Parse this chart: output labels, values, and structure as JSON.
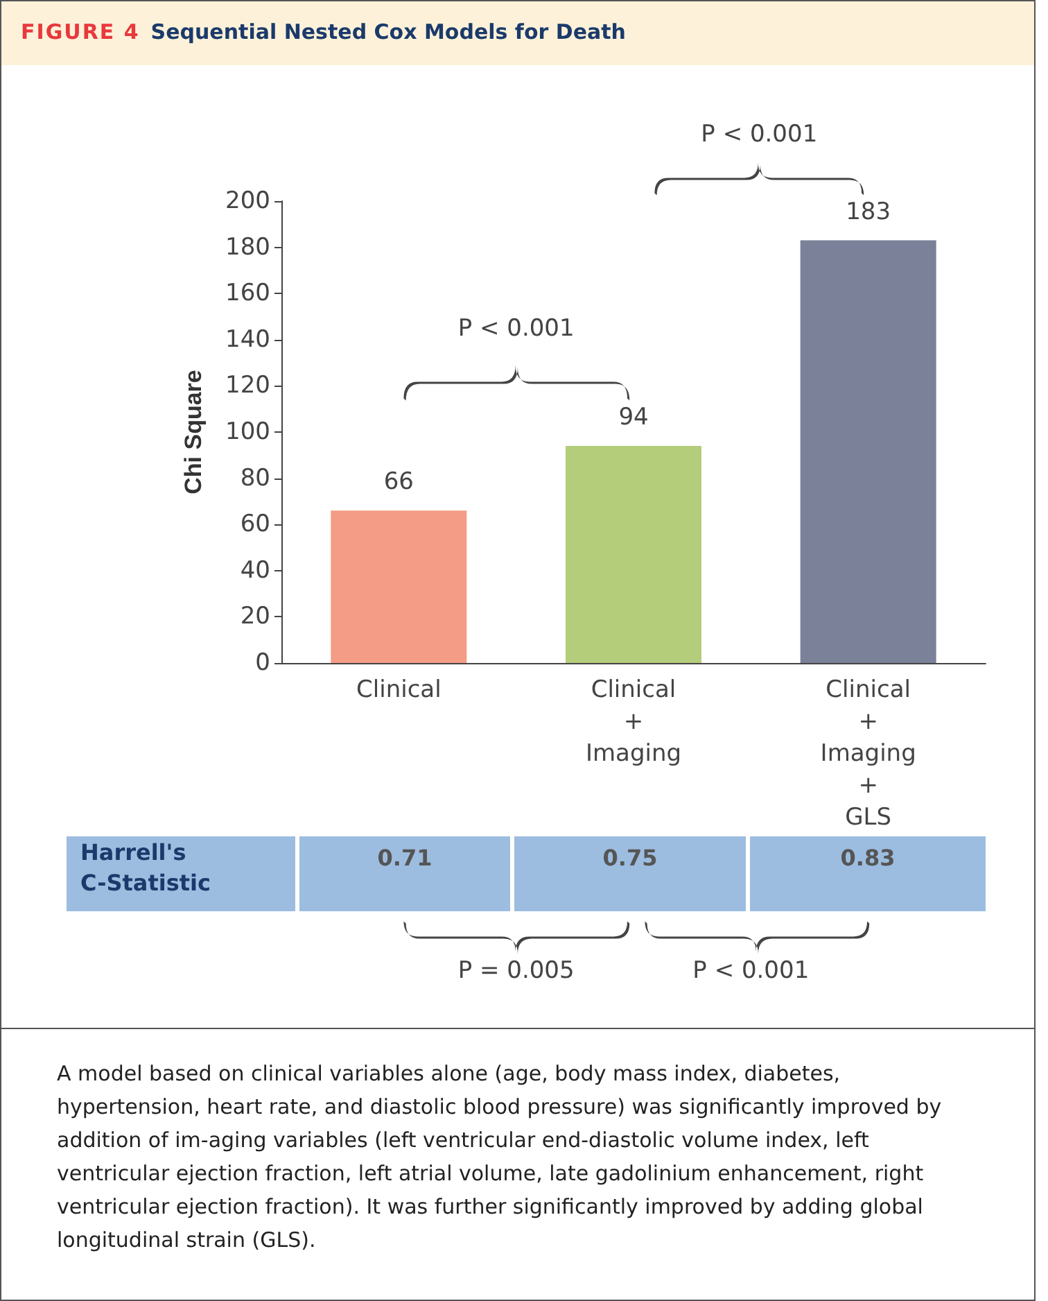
{
  "chart_data": {
    "type": "bar",
    "title": "FIGURE 4",
    "subtitle": "Sequential Nested Cox Models for Death",
    "ylabel": "Chi Square",
    "categories": [
      "Clinical",
      "Clinical\n+\nImaging",
      "Clinical\n+\nImaging\n+\nGLS"
    ],
    "values": [
      66,
      94,
      183
    ],
    "colors": [
      "#f49c85",
      "#b3cd7b",
      "#7a8199"
    ],
    "ylim": [
      0,
      200
    ],
    "yticks": [
      0,
      20,
      40,
      60,
      80,
      100,
      120,
      140,
      160,
      180,
      200
    ],
    "grid": false,
    "data_labels": true,
    "annotations": [
      "P < 0.001",
      "P < 0.001",
      "Harrell's C-Statistic",
      "0.71",
      "0.75",
      "0.83",
      "P = 0.005",
      "P < 0.001",
      "A model based on clinical variables alone (age, body mass index, diabetes, hypertension, heart rate, and diastolic blood pressure) was significantly improved by addition of im-aging variables (left ventricular end-diastolic volume index, left ventricular ejection fraction, left atrial volume, late gadolinium enhancement, right ventricular ejection fraction). It was further significantly improved by adding global longitudinal strain (GLS)."
    ]
  }
}
